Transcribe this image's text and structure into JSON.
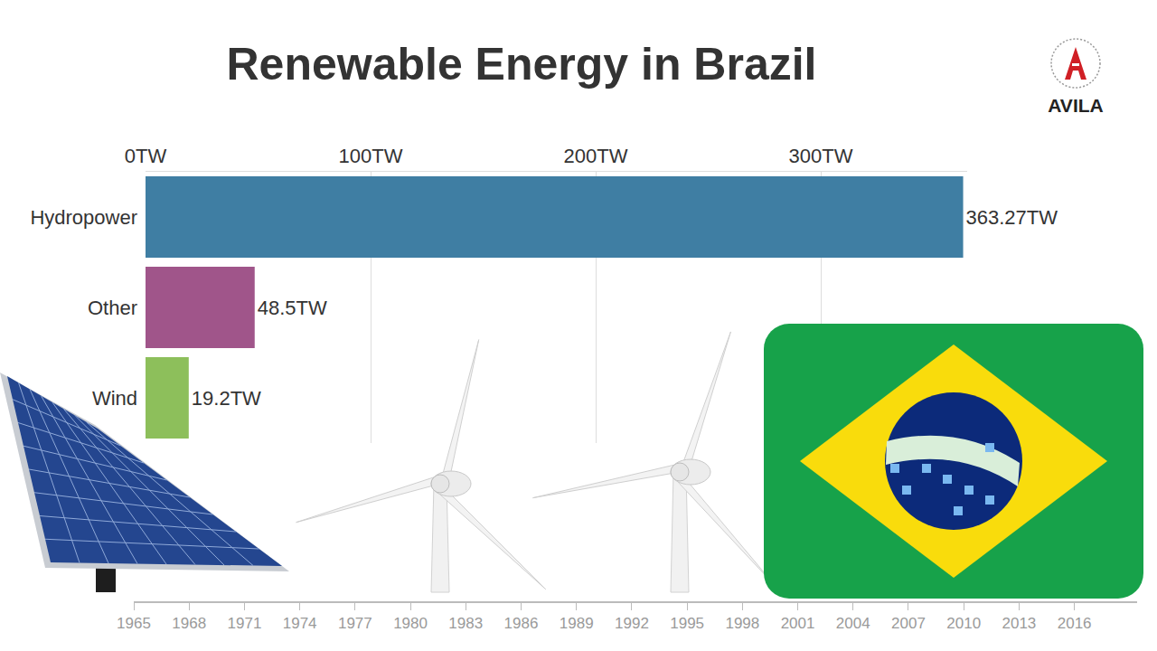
{
  "chart_data": [
    {
      "type": "bar",
      "title": "Renewable Energy in Brazil",
      "orientation": "horizontal",
      "categories": [
        "Hydropower",
        "Other",
        "Wind"
      ],
      "values": [
        363.27,
        48.5,
        19.2
      ],
      "value_labels": [
        "363.27TW",
        "48.5TW",
        "19.2TW"
      ],
      "colors": [
        "#3f7ea3",
        "#a0558a",
        "#8dbf5b"
      ],
      "xlim": [
        0,
        365
      ],
      "xticks": [
        {
          "value": 0,
          "label": "0TW"
        },
        {
          "value": 100,
          "label": "100TW"
        },
        {
          "value": 200,
          "label": "200TW"
        },
        {
          "value": 300,
          "label": "300TW"
        }
      ],
      "grid": true,
      "data_labels": true
    },
    {
      "type": "timeline",
      "xlim": [
        1965,
        2019.4
      ],
      "xticks": [
        1965,
        1968,
        1971,
        1974,
        1977,
        1980,
        1983,
        1986,
        1989,
        1992,
        1995,
        1998,
        2001,
        2004,
        2007,
        2010,
        2013,
        2016
      ]
    }
  ],
  "logo": "AVILA"
}
